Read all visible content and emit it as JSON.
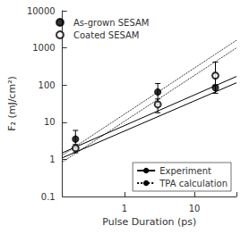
{
  "chart_data": {
    "type": "scatter",
    "xlabel": "Pulse Duration (ps)",
    "ylabel": "F₂ (mJ/cm²)",
    "log": true,
    "grid": false,
    "xlim": [
      0.13,
      40
    ],
    "ylim": [
      0.1,
      10000
    ],
    "xticks": [
      1,
      10
    ],
    "yticks": [
      0.1,
      1,
      10,
      100,
      1000,
      10000
    ],
    "series": [
      {
        "name": "As-grown SESAM",
        "type": "scatter",
        "marker": "circle",
        "color": "#000000",
        "legend": "upper left",
        "x": [
          0.2,
          3.0,
          20.0
        ],
        "values": [
          3.5,
          65.0,
          85.0
        ],
        "error_low": [
          1.5,
          35.0,
          25.0
        ],
        "error_high": [
          2.5,
          45.0,
          330.0
        ]
      },
      {
        "name": "Coated SESAM",
        "type": "scatter",
        "marker": "open_circle",
        "color": "#000000",
        "legend": "upper left",
        "x": [
          0.2,
          3.0,
          20.0
        ],
        "values": [
          2.0,
          30.0,
          180.0
        ],
        "error_low": [
          0.5,
          12.0,
          80.0
        ],
        "error_high": [
          0.5,
          12.0,
          25.0
        ]
      },
      {
        "name": "Experiment",
        "type": "line",
        "line_style": "solid",
        "color": "#000000",
        "legend": "lower right",
        "x": [
          0.13,
          40
        ],
        "values": [
          1.5,
          170.0
        ]
      },
      {
        "name": "Experiment",
        "type": "line",
        "line_style": "solid",
        "color": "#000000",
        "legend": "lower right",
        "x": [
          0.13,
          40
        ],
        "values": [
          1.1,
          115.0
        ]
      },
      {
        "name": "TPA calculation",
        "type": "line",
        "line_style": "dotted",
        "color": "#000000",
        "legend": "lower right",
        "x": [
          0.13,
          40
        ],
        "values": [
          1.3,
          1600.0
        ]
      },
      {
        "name": "TPA calculation",
        "type": "line",
        "line_style": "dotted",
        "color": "#000000",
        "legend": "lower right",
        "x": [
          0.13,
          40
        ],
        "values": [
          0.85,
          1000.0
        ]
      }
    ]
  }
}
